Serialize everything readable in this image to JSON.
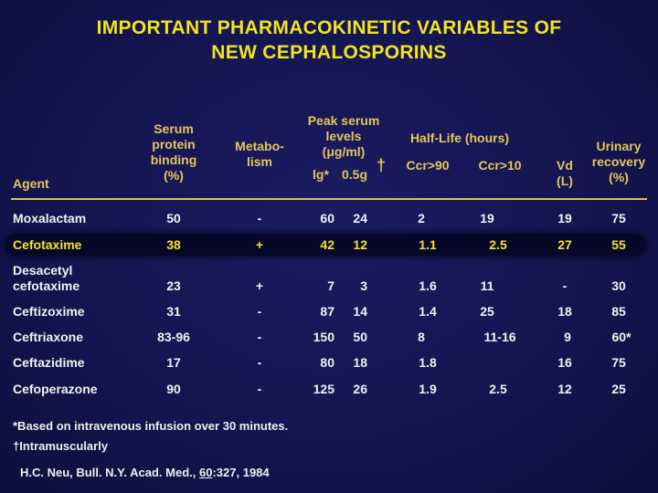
{
  "title_line1": "IMPORTANT PHARMACOKINETIC VARIABLES OF",
  "title_line2": "NEW CEPHALOSPORINS",
  "headers": {
    "agent": "Agent",
    "protein": [
      "Serum",
      "protein",
      "binding",
      "(%)"
    ],
    "metabolism": [
      "Metabo-",
      "lism"
    ],
    "peak": [
      "Peak serum",
      "levels",
      "(μg/ml)"
    ],
    "peak_dose1": "lg*",
    "peak_dose2": "0.5g",
    "peak_dagger": "†",
    "halflife": "Half-Life (hours)",
    "ccr90": "Ccr>90",
    "ccr10": "Ccr>10",
    "vd": [
      "Vd",
      "(L)"
    ],
    "urinary": [
      "Urinary",
      "recovery",
      "(%)"
    ]
  },
  "rows": [
    {
      "agent": "Moxalactam",
      "binding": "50",
      "metab": "-",
      "peak1": "60",
      "peak2": "24",
      "hl90": "2",
      "hl10": "19",
      "vd": "19",
      "urinary": "75"
    },
    {
      "agent": "Cefotaxime",
      "binding": "38",
      "metab": "+",
      "peak1": "42",
      "peak2": "12",
      "hl90": "1.1",
      "hl10": "2.5",
      "vd": "27",
      "urinary": "55"
    },
    {
      "agent": "Desacetyl",
      "agent2": "cefotaxime",
      "binding": "23",
      "metab": "+",
      "peak1": "7",
      "peak2": "3",
      "hl90": "1.6",
      "hl10": "11",
      "vd": "-",
      "urinary": "30"
    },
    {
      "agent": "Ceftizoxime",
      "binding": "31",
      "metab": "-",
      "peak1": "87",
      "peak2": "14",
      "hl90": "1.4",
      "hl10": "25",
      "vd": "18",
      "urinary": "85"
    },
    {
      "agent": "Ceftriaxone",
      "binding": "83-96",
      "metab": "-",
      "peak1": "150",
      "peak2": "50",
      "hl90": "8",
      "hl10": "11-16",
      "vd": "9",
      "urinary": "60*"
    },
    {
      "agent": "Ceftazidime",
      "binding": "17",
      "metab": "-",
      "peak1": "80",
      "peak2": "18",
      "hl90": "1.8",
      "hl10": "",
      "vd": "16",
      "urinary": "75"
    },
    {
      "agent": "Cefoperazone",
      "binding": "90",
      "metab": "-",
      "peak1": "125",
      "peak2": "26",
      "hl90": "1.9",
      "hl10": "2.5",
      "vd": "12",
      "urinary": "25"
    }
  ],
  "footnotes": {
    "star": "*Based on intravenous infusion over 30 minutes.",
    "dagger": "†Intramuscularly",
    "citation_pre": "H.C. Neu, Bull. N.Y. Acad. Med., ",
    "citation_vol": "60",
    "citation_post": ":327, 1984"
  },
  "colors": {
    "background": "#14144f",
    "title": "#f0e51e",
    "header": "#e3c85a",
    "highlight": "#f3e428",
    "body_text": "#f2f2f2"
  }
}
